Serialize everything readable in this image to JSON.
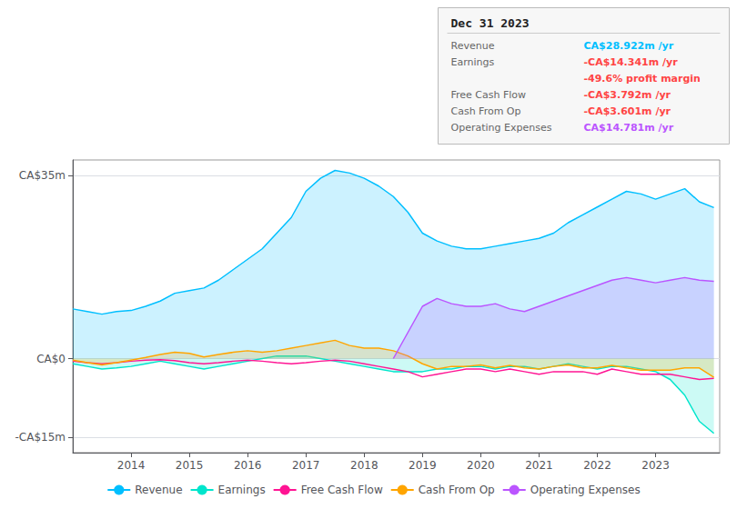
{
  "chart_data": {
    "type": "line",
    "xlim": [
      2013.0,
      2024.1
    ],
    "xticks": [
      2014,
      2015,
      2016,
      2017,
      2018,
      2019,
      2020,
      2021,
      2022,
      2023
    ],
    "ylim": [
      -18,
      38
    ],
    "yticks": [
      {
        "value": -15,
        "label": "-CA$15m"
      },
      {
        "value": 0,
        "label": "CA$0"
      },
      {
        "value": 35,
        "label": "CA$35m"
      }
    ],
    "grid": true,
    "legend": "bottom",
    "series": [
      {
        "name": "Revenue",
        "color": "#00bfff",
        "type": "area",
        "x": [
          2013.0,
          2013.25,
          2013.5,
          2013.75,
          2014.0,
          2014.25,
          2014.5,
          2014.75,
          2015.0,
          2015.25,
          2015.5,
          2015.75,
          2016.0,
          2016.25,
          2016.5,
          2016.75,
          2017.0,
          2017.25,
          2017.5,
          2017.75,
          2018.0,
          2018.25,
          2018.5,
          2018.75,
          2019.0,
          2019.25,
          2019.5,
          2019.75,
          2020.0,
          2020.25,
          2020.5,
          2020.75,
          2021.0,
          2021.25,
          2021.5,
          2021.75,
          2022.0,
          2022.25,
          2022.5,
          2022.75,
          2023.0,
          2023.25,
          2023.5,
          2023.75,
          2024.0
        ],
        "values": [
          9.5,
          9.0,
          8.5,
          9.0,
          9.2,
          10.0,
          11.0,
          12.5,
          13.0,
          13.5,
          15.0,
          17.0,
          19.0,
          21.0,
          24.0,
          27.0,
          32.0,
          34.5,
          36.0,
          35.5,
          34.5,
          33.0,
          31.0,
          28.0,
          24.0,
          22.5,
          21.5,
          21.0,
          21.0,
          21.5,
          22.0,
          22.5,
          23.0,
          24.0,
          26.0,
          27.5,
          29.0,
          30.5,
          32.0,
          31.5,
          30.5,
          31.5,
          32.5,
          30.0,
          28.9
        ]
      },
      {
        "name": "Earnings",
        "color": "#00e5cc",
        "type": "area",
        "x": [
          2013.0,
          2013.25,
          2013.5,
          2013.75,
          2014.0,
          2014.25,
          2014.5,
          2014.75,
          2015.0,
          2015.25,
          2015.5,
          2015.75,
          2016.0,
          2016.25,
          2016.5,
          2016.75,
          2017.0,
          2017.25,
          2017.5,
          2017.75,
          2018.0,
          2018.25,
          2018.5,
          2018.75,
          2019.0,
          2019.25,
          2019.5,
          2019.75,
          2020.0,
          2020.25,
          2020.5,
          2020.75,
          2021.0,
          2021.25,
          2021.5,
          2021.75,
          2022.0,
          2022.25,
          2022.5,
          2022.75,
          2023.0,
          2023.25,
          2023.5,
          2023.75,
          2024.0
        ],
        "values": [
          -1.0,
          -1.5,
          -2.0,
          -1.8,
          -1.5,
          -1.0,
          -0.5,
          -1.0,
          -1.5,
          -2.0,
          -1.5,
          -1.0,
          -0.5,
          0.0,
          0.5,
          0.5,
          0.5,
          0.0,
          -0.5,
          -1.0,
          -1.5,
          -2.0,
          -2.5,
          -2.5,
          -2.5,
          -2.0,
          -2.0,
          -1.5,
          -1.5,
          -2.0,
          -1.5,
          -1.5,
          -2.0,
          -1.5,
          -1.0,
          -1.5,
          -2.0,
          -1.5,
          -1.5,
          -2.0,
          -2.5,
          -4.0,
          -7.0,
          -12.0,
          -14.3
        ]
      },
      {
        "name": "Free Cash Flow",
        "color": "#ff1493",
        "type": "line",
        "x": [
          2013.0,
          2013.25,
          2013.5,
          2013.75,
          2014.0,
          2014.25,
          2014.5,
          2014.75,
          2015.0,
          2015.25,
          2015.5,
          2015.75,
          2016.0,
          2016.25,
          2016.5,
          2016.75,
          2017.0,
          2017.25,
          2017.5,
          2017.75,
          2018.0,
          2018.25,
          2018.5,
          2018.75,
          2019.0,
          2019.25,
          2019.5,
          2019.75,
          2020.0,
          2020.25,
          2020.5,
          2020.75,
          2021.0,
          2021.25,
          2021.5,
          2021.75,
          2022.0,
          2022.25,
          2022.5,
          2022.75,
          2023.0,
          2023.25,
          2023.5,
          2023.75,
          2024.0
        ],
        "values": [
          -0.5,
          -0.8,
          -1.0,
          -0.8,
          -0.5,
          -0.3,
          -0.2,
          -0.4,
          -0.8,
          -1.0,
          -0.8,
          -0.5,
          -0.3,
          -0.5,
          -0.8,
          -1.0,
          -0.8,
          -0.5,
          -0.3,
          -0.5,
          -1.0,
          -1.5,
          -2.0,
          -2.5,
          -3.5,
          -3.0,
          -2.5,
          -2.0,
          -2.0,
          -2.5,
          -2.0,
          -2.5,
          -3.0,
          -2.5,
          -2.5,
          -2.5,
          -3.0,
          -2.0,
          -2.5,
          -3.0,
          -3.0,
          -3.0,
          -3.5,
          -4.0,
          -3.8
        ]
      },
      {
        "name": "Cash From Op",
        "color": "#ffa500",
        "type": "area",
        "x": [
          2013.0,
          2013.25,
          2013.5,
          2013.75,
          2014.0,
          2014.25,
          2014.5,
          2014.75,
          2015.0,
          2015.25,
          2015.5,
          2015.75,
          2016.0,
          2016.25,
          2016.5,
          2016.75,
          2017.0,
          2017.25,
          2017.5,
          2017.75,
          2018.0,
          2018.25,
          2018.5,
          2018.75,
          2019.0,
          2019.25,
          2019.5,
          2019.75,
          2020.0,
          2020.25,
          2020.5,
          2020.75,
          2021.0,
          2021.25,
          2021.5,
          2021.75,
          2022.0,
          2022.25,
          2022.5,
          2022.75,
          2023.0,
          2023.25,
          2023.5,
          2023.75,
          2024.0
        ],
        "values": [
          -0.3,
          -0.8,
          -1.2,
          -0.8,
          -0.3,
          0.2,
          0.8,
          1.2,
          1.0,
          0.3,
          0.8,
          1.2,
          1.5,
          1.2,
          1.5,
          2.0,
          2.5,
          3.0,
          3.5,
          2.5,
          2.0,
          2.0,
          1.5,
          0.5,
          -1.0,
          -2.0,
          -1.5,
          -1.5,
          -1.2,
          -1.8,
          -1.3,
          -1.8,
          -2.0,
          -1.5,
          -1.2,
          -1.8,
          -1.8,
          -1.3,
          -1.8,
          -2.2,
          -2.2,
          -2.2,
          -1.8,
          -1.8,
          -3.6
        ]
      },
      {
        "name": "Operating Expenses",
        "color": "#bb55ff",
        "type": "area",
        "x": [
          2018.5,
          2018.75,
          2019.0,
          2019.25,
          2019.5,
          2019.75,
          2020.0,
          2020.25,
          2020.5,
          2020.75,
          2021.0,
          2021.25,
          2021.5,
          2021.75,
          2022.0,
          2022.25,
          2022.5,
          2022.75,
          2023.0,
          2023.25,
          2023.5,
          2023.75,
          2024.0
        ],
        "values": [
          0.0,
          5.0,
          10.0,
          11.5,
          10.5,
          10.0,
          10.0,
          10.5,
          9.5,
          9.0,
          10.0,
          11.0,
          12.0,
          13.0,
          14.0,
          15.0,
          15.5,
          15.0,
          14.5,
          15.0,
          15.5,
          15.0,
          14.8
        ]
      }
    ],
    "annotations": [
      {
        "text": "Dec 31 2023"
      },
      {
        "label": "Revenue",
        "text": "CA$28.922m /yr",
        "color": "#00bfff"
      },
      {
        "label": "Earnings",
        "text": "-CA$14.341m /yr",
        "color": "#ff4444"
      },
      {
        "text": "-49.6% profit margin",
        "color": "#ff4444"
      },
      {
        "label": "Free Cash Flow",
        "text": "-CA$3.792m /yr",
        "color": "#ff4444"
      },
      {
        "label": "Cash From Op",
        "text": "-CA$3.601m /yr",
        "color": "#ff4444"
      },
      {
        "label": "Operating Expenses",
        "text": "CA$14.781m /yr",
        "color": "#bb55ff"
      }
    ]
  }
}
